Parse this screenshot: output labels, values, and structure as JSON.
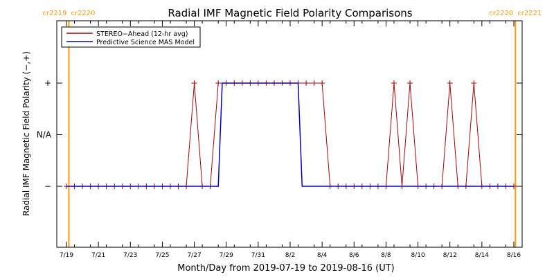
{
  "chart_data": {
    "type": "line",
    "title": "Radial IMF Magnetic Field Polarity Comparisons",
    "xlabel": "Month/Day from 2019-07-19 to 2019-08-16 (UT)",
    "ylabel": "Radial IMF Magnetic Field Polarity (−,+)",
    "x_unit": "days since 2019-07-19 00:00 UT",
    "xlim": [
      0,
      28.5
    ],
    "ylim": [
      -1.5,
      1.5
    ],
    "x_ticks": [
      {
        "x": 0,
        "label": "7/19"
      },
      {
        "x": 2,
        "label": "7/21"
      },
      {
        "x": 4,
        "label": "7/23"
      },
      {
        "x": 6,
        "label": "7/25"
      },
      {
        "x": 8,
        "label": "7/27"
      },
      {
        "x": 10,
        "label": "7/29"
      },
      {
        "x": 12,
        "label": "7/31"
      },
      {
        "x": 14,
        "label": "8/2"
      },
      {
        "x": 16,
        "label": "8/4"
      },
      {
        "x": 18,
        "label": "8/6"
      },
      {
        "x": 20,
        "label": "8/8"
      },
      {
        "x": 22,
        "label": "8/10"
      },
      {
        "x": 24,
        "label": "8/12"
      },
      {
        "x": 26,
        "label": "8/14"
      },
      {
        "x": 28,
        "label": "8/16"
      }
    ],
    "y_ticks": [
      {
        "y": 1,
        "label": "+"
      },
      {
        "y": 0,
        "label": "N/A"
      },
      {
        "y": -1,
        "label": "−"
      }
    ],
    "rotation_markers": [
      {
        "x": 0.15,
        "left_label": "cr2219",
        "right_label": "cr2220",
        "color": "#ff9900"
      },
      {
        "x": 28.1,
        "left_label": "cr2220",
        "right_label": "cr2221",
        "color": "#ff9900"
      }
    ],
    "legend": {
      "placement": "top-left",
      "entries": [
        {
          "label": "STEREO−Ahead (12-hr avg)",
          "color": "#aa0000"
        },
        {
          "label": "Predictive Science MAS Model",
          "color": "#0000cc"
        }
      ]
    },
    "series": [
      {
        "name": "STEREO−Ahead (12-hr avg)",
        "color": "#aa0000",
        "marker": "plus",
        "points": [
          [
            0,
            -1
          ],
          [
            0.5,
            -1
          ],
          [
            1,
            -1
          ],
          [
            1.5,
            -1
          ],
          [
            2,
            -1
          ],
          [
            2.5,
            -1
          ],
          [
            3,
            -1
          ],
          [
            3.5,
            -1
          ],
          [
            4,
            -1
          ],
          [
            4.5,
            -1
          ],
          [
            5,
            -1
          ],
          [
            5.5,
            -1
          ],
          [
            6,
            -1
          ],
          [
            6.5,
            -1
          ],
          [
            7,
            -1
          ],
          [
            7.5,
            -1
          ],
          [
            8,
            1
          ],
          [
            8.5,
            -1
          ],
          [
            9,
            -1
          ],
          [
            9.5,
            1
          ],
          [
            10,
            1
          ],
          [
            10.5,
            1
          ],
          [
            11,
            1
          ],
          [
            11.5,
            1
          ],
          [
            12,
            1
          ],
          [
            12.5,
            1
          ],
          [
            13,
            1
          ],
          [
            13.5,
            1
          ],
          [
            14,
            1
          ],
          [
            14.5,
            1
          ],
          [
            15,
            1
          ],
          [
            15.5,
            1
          ],
          [
            16,
            1
          ],
          [
            16.5,
            -1
          ],
          [
            17,
            -1
          ],
          [
            17.5,
            -1
          ],
          [
            18,
            -1
          ],
          [
            18.5,
            -1
          ],
          [
            19,
            -1
          ],
          [
            19.5,
            -1
          ],
          [
            20,
            -1
          ],
          [
            20.5,
            1
          ],
          [
            21,
            -1
          ],
          [
            21.5,
            1
          ],
          [
            22,
            -1
          ],
          [
            22.5,
            -1
          ],
          [
            23,
            -1
          ],
          [
            23.5,
            -1
          ],
          [
            24,
            1
          ],
          [
            24.5,
            -1
          ],
          [
            25,
            -1
          ],
          [
            25.5,
            1
          ],
          [
            26,
            -1
          ],
          [
            26.5,
            -1
          ],
          [
            27,
            -1
          ],
          [
            27.5,
            -1
          ],
          [
            28,
            -1
          ]
        ]
      },
      {
        "name": "Predictive Science MAS Model",
        "color": "#0000cc",
        "marker": "none",
        "points": [
          [
            0,
            -1
          ],
          [
            9.5,
            -1
          ],
          [
            9.75,
            1
          ],
          [
            14.5,
            1
          ],
          [
            14.75,
            -1
          ],
          [
            28,
            -1
          ]
        ]
      }
    ],
    "grid": false
  }
}
